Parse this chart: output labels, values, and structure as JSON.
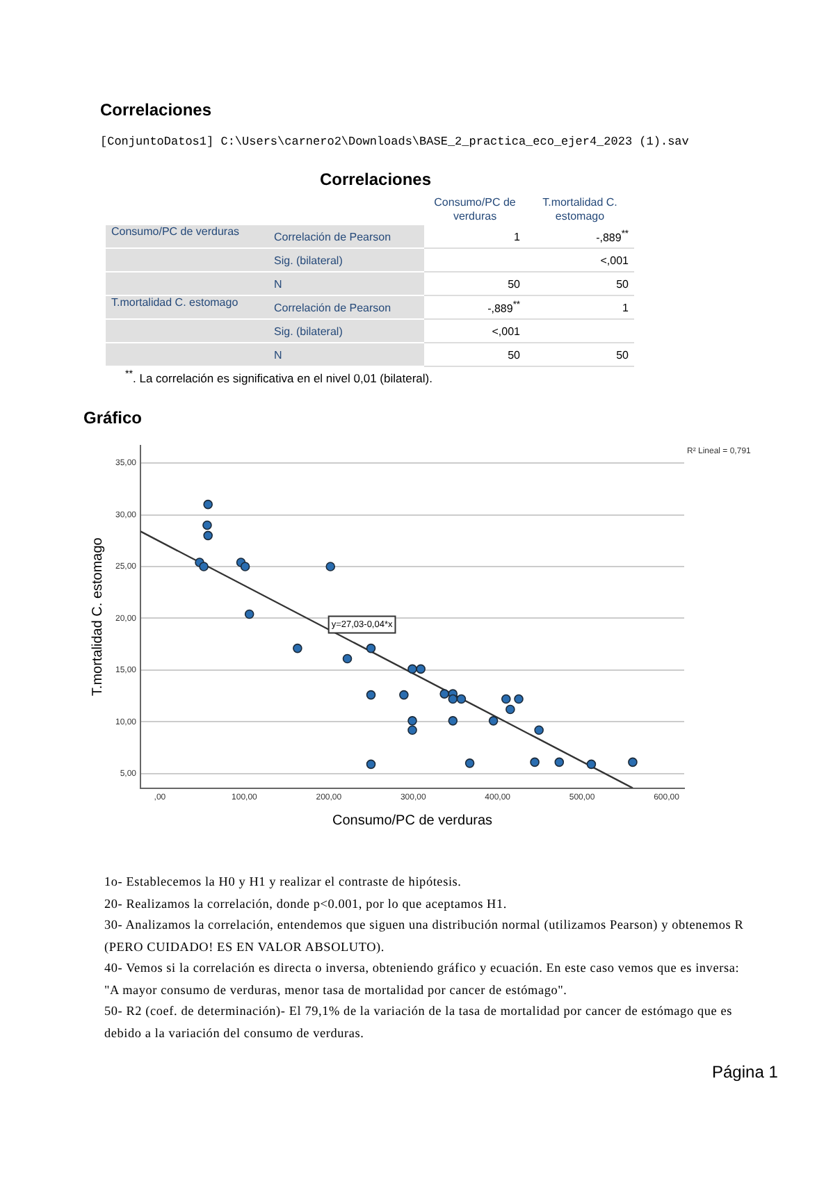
{
  "chart_data": {
    "type": "scatter",
    "title": "Gráfico",
    "xlabel": "Consumo/PC de verduras",
    "ylabel": "T.mortalidad C. estomago",
    "xlim": [
      -23,
      621
    ],
    "ylim": [
      3.6,
      36.7
    ],
    "xticks": [
      {
        "value": 0,
        "label": ",00"
      },
      {
        "value": 100,
        "label": "100,00"
      },
      {
        "value": 200,
        "label": "200,00"
      },
      {
        "value": 300,
        "label": "300,00"
      },
      {
        "value": 400,
        "label": "400,00"
      },
      {
        "value": 500,
        "label": "500,00"
      },
      {
        "value": 600,
        "label": "600,00"
      }
    ],
    "yticks": [
      {
        "value": 5,
        "label": "5,00"
      },
      {
        "value": 10,
        "label": "10,00"
      },
      {
        "value": 15,
        "label": "15,00"
      },
      {
        "value": 20,
        "label": "20,00"
      },
      {
        "value": 25,
        "label": "25,00"
      },
      {
        "value": 30,
        "label": "30,00"
      },
      {
        "value": 35,
        "label": "35,00"
      }
    ],
    "grid": "y",
    "marker": "circle",
    "legend": false,
    "series": [
      {
        "type": "scatter",
        "color": "#2a6db0",
        "x": [
          57,
          56,
          57,
          47,
          52,
          96,
          101,
          106,
          163,
          202,
          222,
          250,
          250,
          250,
          289,
          299,
          309,
          299,
          299,
          337,
          347,
          347,
          347,
          357,
          367,
          395,
          410,
          415,
          425,
          449,
          444,
          473,
          511,
          560
        ],
        "values": [
          31.0,
          29.0,
          28.0,
          25.4,
          25.0,
          25.4,
          25.0,
          20.4,
          17.1,
          25.0,
          16.1,
          17.1,
          12.6,
          5.9,
          12.6,
          15.1,
          15.1,
          10.1,
          9.2,
          12.7,
          12.7,
          12.2,
          10.1,
          12.2,
          6.0,
          10.1,
          12.2,
          11.2,
          12.2,
          9.2,
          6.1,
          6.1,
          5.9,
          6.1
        ]
      },
      {
        "type": "line",
        "marker": "none",
        "color": "#333333",
        "x": [
          -23,
          560
        ],
        "values": [
          28.4,
          3.6
        ]
      }
    ],
    "annotations": [
      "Correlaciones",
      "[ConjuntoDatos1] C:\\Users\\carnero2\\Downloads\\BASE_2_practica_eco_ejer4_2023 (1).sav",
      "Correlaciones",
      "Consumo/PC de verduras",
      "T.mortalidad C. estomago",
      "Consumo/PC de verduras",
      "Correlación de Pearson",
      "1",
      "-,889$^{**}$",
      "Sig. (bilateral)",
      "<,001",
      "N",
      "50",
      "50",
      "T.mortalidad C. estomago",
      "Correlación de Pearson",
      "-,889$^{**}$",
      "1",
      "Sig. (bilateral)",
      "<,001",
      "N",
      "50",
      "50",
      "$^{**}$. La correlación es significativa en el nivel 0,01 (bilateral).",
      "R² Lineal = 0,791",
      "y=27,03-0,04*x",
      "1o- Establecemos la H0 y H1 y realizar el contraste de hipótesis.",
      "20- Realizamos la correlación, donde p<0.001, por lo que aceptamos H1.",
      "30- Analizamos la correlación, entendemos que siguen una distribución normal (utilizamos Pearson) y obtenemos R (PERO CUIDADO! ES EN VALOR ABSOLUTO).",
      "40- Vemos si la correlación es directa o inversa, obteniendo gráfico y ecuación. En este caso vemos que es inversa: \"A mayor consumo de verduras, menor tasa de mortalidad por cancer de estómago\".",
      "50- R2 (coef. de determinación)- El 79,1% de la variación de la tasa de mortalidad por cancer de estómago que es debido a la variación del consumo de verduras.",
      "Página 1"
    ]
  }
}
